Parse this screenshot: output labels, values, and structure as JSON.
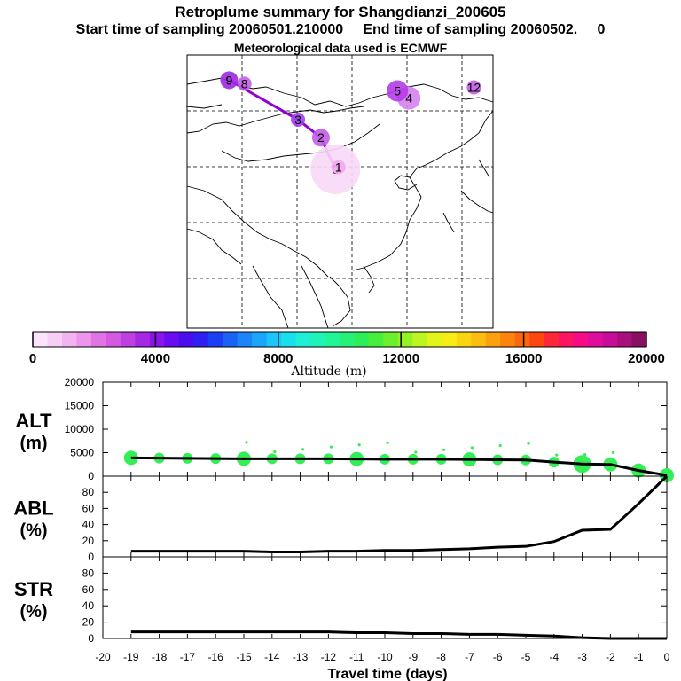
{
  "header": {
    "title": "Retroplume summary for Shangdianzi_200605",
    "sampling_line": "Start time of sampling 20060501.210000     End time of sampling 20060502.     0",
    "met_line": "Meteorological data used is ECMWF"
  },
  "colors": {
    "plume_track": "#9400D3",
    "series_line": "#000000",
    "alt_dots": "#33ee55",
    "grid": "#000000"
  },
  "chart_data": [
    {
      "id": "map",
      "type": "map",
      "description_labels": [
        "0",
        "1",
        "2",
        "3",
        "4",
        "5",
        "8",
        "9",
        "12"
      ],
      "clusters": [
        {
          "label": "0",
          "days_back": 0,
          "lon": 116.9,
          "lat": 40.6
        },
        {
          "label": "1",
          "days_back": -1,
          "lon": 117.3,
          "lat": 40.9
        },
        {
          "label": "2",
          "days_back": -2,
          "lon": 115.0,
          "lat": 45.0
        },
        {
          "label": "3",
          "days_back": -3,
          "lon": 112.0,
          "lat": 47.5
        },
        {
          "label": "4",
          "days_back": -4,
          "lon": 126.5,
          "lat": 50.5
        },
        {
          "label": "5",
          "days_back": -5,
          "lon": 125.0,
          "lat": 51.5
        },
        {
          "label": "8",
          "days_back": -8,
          "lon": 105.0,
          "lat": 52.5
        },
        {
          "label": "9",
          "days_back": -9,
          "lon": 103.0,
          "lat": 53.0
        },
        {
          "label": "12",
          "days_back": -12,
          "lon": 135.0,
          "lat": 52.0
        }
      ]
    },
    {
      "id": "colorbar",
      "type": "colorbar",
      "xlabel": "Altitude (m)",
      "range": [
        0,
        20000
      ],
      "tick_labels": [
        "0",
        "4000",
        "8000",
        "12000",
        "16000",
        "20000"
      ]
    },
    {
      "id": "alt",
      "type": "line",
      "ylabel_top": "ALT",
      "ylabel_bottom": "(m)",
      "ylim": [
        0,
        20000
      ],
      "yticks": [
        "0",
        "5000",
        "10000",
        "15000",
        "20000"
      ],
      "x": [
        -19,
        -18,
        -17,
        -16,
        -15,
        -14,
        -13,
        -12,
        -11,
        -10,
        -9,
        -8,
        -7,
        -6,
        -5,
        -4,
        -3,
        -2,
        -1,
        0
      ],
      "values": [
        3900,
        3850,
        3800,
        3750,
        3700,
        3700,
        3700,
        3700,
        3650,
        3600,
        3600,
        3600,
        3550,
        3500,
        3450,
        3000,
        2600,
        2500,
        1200,
        200
      ]
    },
    {
      "id": "abl",
      "type": "line",
      "ylabel_top": "ABL",
      "ylabel_bottom": "(%)",
      "ylim": [
        0,
        100
      ],
      "yticks": [
        "0",
        "20",
        "40",
        "60",
        "80"
      ],
      "x": [
        -19,
        -18,
        -17,
        -16,
        -15,
        -14,
        -13,
        -12,
        -11,
        -10,
        -9,
        -8,
        -7,
        -6,
        -5,
        -4,
        -3,
        -2,
        -1,
        0
      ],
      "values": [
        7,
        7,
        7,
        7,
        7,
        6,
        6,
        7,
        7,
        8,
        8,
        9,
        10,
        12,
        13,
        19,
        33,
        34,
        66,
        100
      ]
    },
    {
      "id": "str",
      "type": "line",
      "ylabel_top": "STR",
      "ylabel_bottom": "(%)",
      "ylim": [
        0,
        100
      ],
      "yticks": [
        "0",
        "20",
        "40",
        "60",
        "80"
      ],
      "x": [
        -19,
        -18,
        -17,
        -16,
        -15,
        -14,
        -13,
        -12,
        -11,
        -10,
        -9,
        -8,
        -7,
        -6,
        -5,
        -4,
        -3,
        -2,
        -1,
        0
      ],
      "values": [
        8,
        8,
        8,
        8,
        8,
        8,
        8,
        8,
        7,
        7,
        6,
        6,
        5,
        5,
        4,
        3,
        1,
        0,
        0,
        0
      ]
    }
  ],
  "x_axis": {
    "xlabel": "Travel time (days)",
    "xlim": [
      -20,
      0
    ],
    "tick_labels": [
      "-20",
      "-19",
      "-18",
      "-17",
      "-16",
      "-15",
      "-14",
      "-13",
      "-12",
      "-11",
      "-10",
      "-9",
      "-8",
      "-7",
      "-6",
      "-5",
      "-4",
      "-3",
      "-2",
      "-1",
      "0"
    ]
  }
}
